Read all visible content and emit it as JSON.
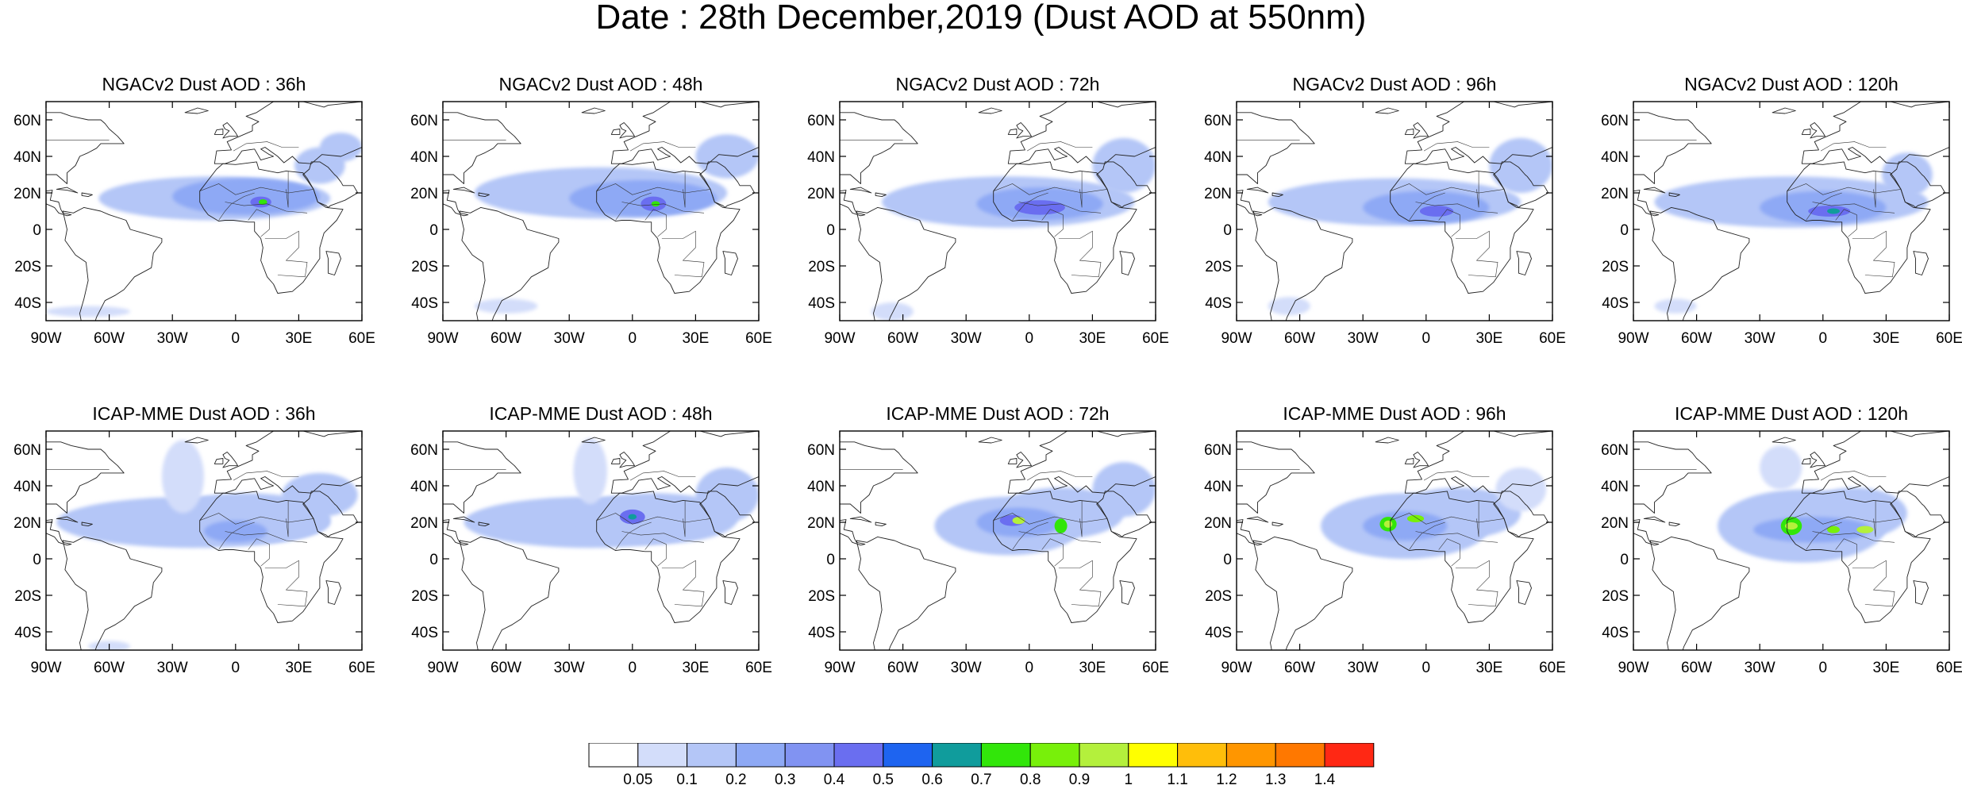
{
  "title": "Date : 28th December,2019 (Dust AOD at 550nm)",
  "map_extent": {
    "lon": [
      -90,
      60
    ],
    "lat": [
      -50,
      70
    ]
  },
  "x_ticks": [
    {
      "lon": -90,
      "label": "90W"
    },
    {
      "lon": -60,
      "label": "60W"
    },
    {
      "lon": -30,
      "label": "30W"
    },
    {
      "lon": 0,
      "label": "0"
    },
    {
      "lon": 30,
      "label": "30E"
    },
    {
      "lon": 60,
      "label": "60E"
    }
  ],
  "y_ticks": [
    {
      "lat": 60,
      "label": "60N"
    },
    {
      "lat": 40,
      "label": "40N"
    },
    {
      "lat": 20,
      "label": "20N"
    },
    {
      "lat": 0,
      "label": "0"
    },
    {
      "lat": -20,
      "label": "20S"
    },
    {
      "lat": -40,
      "label": "40S"
    }
  ],
  "panels": [
    {
      "title": "NGACv2 Dust AOD : 36h",
      "row": 0,
      "col": 0,
      "plumes": [
        {
          "lon": -10,
          "lat": 17,
          "rx": 55,
          "ry": 12,
          "level": 2
        },
        {
          "lon": 5,
          "lat": 18,
          "rx": 35,
          "ry": 10,
          "level": 3
        },
        {
          "lon": 40,
          "lat": 35,
          "rx": 12,
          "ry": 10,
          "level": 2
        },
        {
          "lon": 50,
          "lat": 45,
          "rx": 10,
          "ry": 8,
          "level": 2
        },
        {
          "lon": 12,
          "lat": 15,
          "rx": 5,
          "ry": 3,
          "level": 5
        },
        {
          "lon": 13,
          "lat": 15,
          "rx": 2,
          "ry": 1.5,
          "level": 8
        },
        {
          "lon": -70,
          "lat": -45,
          "rx": 20,
          "ry": 3,
          "level": 1
        }
      ]
    },
    {
      "title": "NGACv2 Dust AOD : 48h",
      "row": 0,
      "col": 1,
      "plumes": [
        {
          "lon": -15,
          "lat": 20,
          "rx": 60,
          "ry": 14,
          "level": 2
        },
        {
          "lon": 5,
          "lat": 17,
          "rx": 35,
          "ry": 10,
          "level": 3
        },
        {
          "lon": 45,
          "lat": 40,
          "rx": 15,
          "ry": 12,
          "level": 2
        },
        {
          "lon": 10,
          "lat": 14,
          "rx": 6,
          "ry": 4,
          "level": 5
        },
        {
          "lon": 11,
          "lat": 14,
          "rx": 2,
          "ry": 1.5,
          "level": 8
        },
        {
          "lon": -60,
          "lat": -42,
          "rx": 15,
          "ry": 4,
          "level": 1
        }
      ]
    },
    {
      "title": "NGACv2 Dust AOD : 72h",
      "row": 0,
      "col": 2,
      "plumes": [
        {
          "lon": -10,
          "lat": 15,
          "rx": 60,
          "ry": 14,
          "level": 2
        },
        {
          "lon": 5,
          "lat": 14,
          "rx": 30,
          "ry": 9,
          "level": 3
        },
        {
          "lon": 45,
          "lat": 35,
          "rx": 15,
          "ry": 15,
          "level": 2
        },
        {
          "lon": 5,
          "lat": 12,
          "rx": 12,
          "ry": 4,
          "level": 5
        },
        {
          "lon": -65,
          "lat": -45,
          "rx": 10,
          "ry": 5,
          "level": 1
        }
      ]
    },
    {
      "title": "NGACv2 Dust AOD : 96h",
      "row": 0,
      "col": 3,
      "plumes": [
        {
          "lon": -15,
          "lat": 15,
          "rx": 60,
          "ry": 13,
          "level": 2
        },
        {
          "lon": 0,
          "lat": 12,
          "rx": 30,
          "ry": 9,
          "level": 3
        },
        {
          "lon": 45,
          "lat": 35,
          "rx": 15,
          "ry": 15,
          "level": 2
        },
        {
          "lon": 5,
          "lat": 10,
          "rx": 8,
          "ry": 3,
          "level": 5
        },
        {
          "lon": -65,
          "lat": -42,
          "rx": 10,
          "ry": 5,
          "level": 1
        }
      ]
    },
    {
      "title": "NGACv2 Dust AOD : 120h",
      "row": 0,
      "col": 4,
      "plumes": [
        {
          "lon": -15,
          "lat": 15,
          "rx": 65,
          "ry": 14,
          "level": 2
        },
        {
          "lon": 0,
          "lat": 12,
          "rx": 30,
          "ry": 9,
          "level": 3
        },
        {
          "lon": 40,
          "lat": 30,
          "rx": 12,
          "ry": 12,
          "level": 2
        },
        {
          "lon": 3,
          "lat": 10,
          "rx": 10,
          "ry": 3,
          "level": 5
        },
        {
          "lon": 5,
          "lat": 10,
          "rx": 3,
          "ry": 1.5,
          "level": 7
        },
        {
          "lon": -70,
          "lat": -42,
          "rx": 10,
          "ry": 4,
          "level": 1
        }
      ]
    },
    {
      "title": "ICAP-MME Dust AOD : 36h",
      "row": 1,
      "col": 0,
      "plumes": [
        {
          "lon": -20,
          "lat": 20,
          "rx": 65,
          "ry": 14,
          "level": 2
        },
        {
          "lon": 5,
          "lat": 22,
          "rx": 40,
          "ry": 14,
          "level": 2
        },
        {
          "lon": -25,
          "lat": 45,
          "rx": 10,
          "ry": 20,
          "level": 1
        },
        {
          "lon": 40,
          "lat": 35,
          "rx": 18,
          "ry": 12,
          "level": 2
        },
        {
          "lon": 0,
          "lat": 15,
          "rx": 15,
          "ry": 6,
          "level": 3
        },
        {
          "lon": -60,
          "lat": -48,
          "rx": 10,
          "ry": 3,
          "level": 1
        }
      ]
    },
    {
      "title": "ICAP-MME Dust AOD : 48h",
      "row": 1,
      "col": 1,
      "plumes": [
        {
          "lon": -20,
          "lat": 20,
          "rx": 60,
          "ry": 14,
          "level": 2
        },
        {
          "lon": 10,
          "lat": 22,
          "rx": 40,
          "ry": 14,
          "level": 2
        },
        {
          "lon": -20,
          "lat": 48,
          "rx": 8,
          "ry": 18,
          "level": 1
        },
        {
          "lon": 45,
          "lat": 35,
          "rx": 15,
          "ry": 15,
          "level": 2
        },
        {
          "lon": 0,
          "lat": 23,
          "rx": 6,
          "ry": 4,
          "level": 5
        },
        {
          "lon": 0,
          "lat": 23,
          "rx": 2,
          "ry": 1.5,
          "level": 7
        }
      ]
    },
    {
      "title": "ICAP-MME Dust AOD : 72h",
      "row": 1,
      "col": 2,
      "plumes": [
        {
          "lon": -10,
          "lat": 18,
          "rx": 35,
          "ry": 16,
          "level": 2
        },
        {
          "lon": 15,
          "lat": 25,
          "rx": 30,
          "ry": 14,
          "level": 2
        },
        {
          "lon": 45,
          "lat": 38,
          "rx": 15,
          "ry": 15,
          "level": 2
        },
        {
          "lon": -5,
          "lat": 20,
          "rx": 20,
          "ry": 8,
          "level": 3
        },
        {
          "lon": -8,
          "lat": 21,
          "rx": 6,
          "ry": 3,
          "level": 5
        },
        {
          "lon": -5,
          "lat": 21,
          "rx": 3,
          "ry": 2,
          "level": 10
        },
        {
          "lon": 15,
          "lat": 18,
          "rx": 3,
          "ry": 4,
          "level": 8
        }
      ]
    },
    {
      "title": "ICAP-MME Dust AOD : 96h",
      "row": 1,
      "col": 3,
      "plumes": [
        {
          "lon": -10,
          "lat": 18,
          "rx": 40,
          "ry": 18,
          "level": 2
        },
        {
          "lon": 15,
          "lat": 25,
          "rx": 30,
          "ry": 14,
          "level": 2
        },
        {
          "lon": 45,
          "lat": 38,
          "rx": 12,
          "ry": 12,
          "level": 1
        },
        {
          "lon": -10,
          "lat": 18,
          "rx": 20,
          "ry": 8,
          "level": 3
        },
        {
          "lon": -18,
          "lat": 19,
          "rx": 4,
          "ry": 4,
          "level": 8
        },
        {
          "lon": -18,
          "lat": 19,
          "rx": 2,
          "ry": 2,
          "level": 10
        },
        {
          "lon": -5,
          "lat": 22,
          "rx": 4,
          "ry": 2,
          "level": 9
        }
      ]
    },
    {
      "title": "ICAP-MME Dust AOD : 120h",
      "row": 1,
      "col": 4,
      "plumes": [
        {
          "lon": -10,
          "lat": 18,
          "rx": 40,
          "ry": 20,
          "level": 2
        },
        {
          "lon": 15,
          "lat": 25,
          "rx": 25,
          "ry": 14,
          "level": 2
        },
        {
          "lon": -20,
          "lat": 50,
          "rx": 10,
          "ry": 12,
          "level": 1
        },
        {
          "lon": -5,
          "lat": 16,
          "rx": 28,
          "ry": 7,
          "level": 3
        },
        {
          "lon": -15,
          "lat": 18,
          "rx": 5,
          "ry": 5,
          "level": 8
        },
        {
          "lon": -15,
          "lat": 18,
          "rx": 3,
          "ry": 2,
          "level": 10
        },
        {
          "lon": 5,
          "lat": 16,
          "rx": 3,
          "ry": 2,
          "level": 9
        },
        {
          "lon": 20,
          "lat": 16,
          "rx": 4,
          "ry": 2,
          "level": 10
        }
      ]
    }
  ],
  "colorbar": {
    "boundaries": [
      "0.05",
      "0.1",
      "0.2",
      "0.3",
      "0.4",
      "0.5",
      "0.6",
      "0.7",
      "0.8",
      "0.9",
      "1",
      "1.1",
      "1.2",
      "1.3",
      "1.4"
    ],
    "colors": [
      "#ffffff",
      "#d3ddfa",
      "#b4c6f7",
      "#8ea9f5",
      "#8193f2",
      "#6a6ef0",
      "#1e64f0",
      "#109c9c",
      "#32e60a",
      "#78f00a",
      "#b4f03c",
      "#ffff00",
      "#ffbe0a",
      "#ff9600",
      "#ff7800",
      "#ff2814"
    ]
  }
}
